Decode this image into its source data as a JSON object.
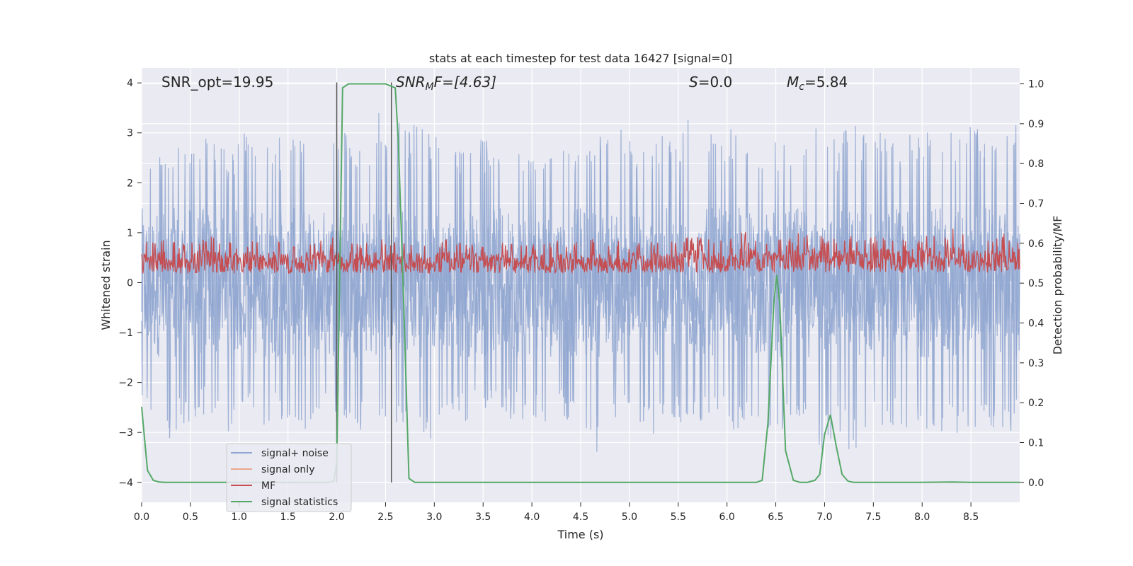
{
  "chart_data": {
    "type": "line",
    "title": "stats at each timestep for test data 16427 [signal=0]",
    "xlabel": "Time (s)",
    "ylabel": "Whitened strain",
    "y2label": "Detection probability/MF",
    "xlim": [
      0.0,
      9.0
    ],
    "ylim": [
      -4.4,
      4.3
    ],
    "y2lim": [
      -0.05,
      1.04
    ],
    "xticks": [
      "0.0",
      "0.5",
      "1.0",
      "1.5",
      "2.0",
      "2.5",
      "3.0",
      "3.5",
      "4.0",
      "4.5",
      "5.0",
      "5.5",
      "6.0",
      "6.5",
      "7.0",
      "7.5",
      "8.0",
      "8.5"
    ],
    "yticks": [
      "4",
      "3",
      "2",
      "1",
      "0",
      "−1",
      "−2",
      "−3",
      "−4"
    ],
    "y2ticks": [
      "1.0",
      "0.9",
      "0.8",
      "0.7",
      "0.6",
      "0.5",
      "0.4",
      "0.3",
      "0.2",
      "0.1",
      "0.0"
    ],
    "grid": true,
    "legend_position": "lower-left",
    "annotations": {
      "snr_opt": "SNR_opt=19.95",
      "snr_mf_base": "SNR",
      "snr_mf_sub": "M",
      "snr_mf_rest": "F=[4.63]",
      "s_var": "S",
      "s_val": "=0.0",
      "mc_var": "M",
      "mc_sub": "c",
      "mc_val": "=5.84"
    },
    "vlines": [
      2.0,
      2.56
    ],
    "series": [
      {
        "name": "signal+ noise",
        "color": "#8fa6d0",
        "axis": "left",
        "envelope_upper": [
          2.2,
          2.6,
          2.5,
          2.8,
          2.6,
          3.0,
          2.7,
          2.6,
          3.3,
          3.2,
          2.9,
          3.0,
          3.1,
          2.8,
          3.0,
          3.2,
          2.9,
          2.7,
          3.6,
          3.4,
          3.3,
          3.3,
          3.0,
          2.9,
          2.8,
          2.9,
          3.0,
          2.6,
          3.0,
          2.7,
          2.8,
          3.0,
          2.7,
          2.7,
          2.7,
          3.0,
          2.9,
          3.2,
          2.8,
          2.8,
          3.0,
          2.8,
          3.9,
          3.6,
          3.0,
          3.1,
          2.7,
          2.7,
          3.0,
          2.9,
          3.2,
          3.0,
          3.4,
          2.9,
          3.2,
          3.1,
          3.2,
          3.1,
          3.0,
          3.0,
          3.2,
          3.1,
          3.0,
          3.2,
          3.1,
          3.3,
          3.2,
          3.2
        ],
        "envelope_lower": [
          -2.4,
          -2.7,
          -3.2,
          -2.9,
          -2.8,
          -2.6,
          -2.8,
          -3.1,
          -2.6,
          -2.9,
          -3.0,
          -2.7,
          -3.2,
          -2.8,
          -2.6,
          -2.7,
          -3.2,
          -2.9,
          -2.8,
          -2.7,
          -3.4,
          -2.9,
          -3.7,
          -3.0,
          -2.7,
          -2.8,
          -2.9,
          -2.6,
          -2.8,
          -2.9,
          -3.0,
          -2.8,
          -2.7,
          -2.9,
          -3.0,
          -4.0,
          -2.8,
          -2.6,
          -2.8,
          -3.2,
          -2.7,
          -2.8,
          -2.9,
          -2.8,
          -2.7,
          -3.2,
          -2.8,
          -3.0,
          -2.9,
          -3.0,
          -2.8,
          -2.9,
          -3.4,
          -3.1,
          -3.6,
          -3.1,
          -3.0,
          -2.8,
          -3.2,
          -2.9,
          -3.1,
          -3.2,
          -3.0,
          -3.1,
          -2.8,
          -3.1,
          -2.9,
          -3.2
        ]
      },
      {
        "name": "signal only",
        "color": "#e8a78d",
        "axis": "left",
        "values": []
      },
      {
        "name": "MF",
        "color": "#c44e52",
        "axis": "right",
        "envelope_upper": [
          0.6,
          0.61,
          0.61,
          0.6,
          0.61,
          0.62,
          0.61,
          0.6,
          0.61,
          0.62,
          0.61,
          0.61,
          0.6,
          0.61,
          0.62,
          0.61,
          0.62,
          0.6,
          0.61,
          0.61,
          0.6,
          0.61,
          0.6,
          0.61,
          0.61,
          0.6,
          0.61,
          0.61,
          0.6,
          0.61,
          0.6,
          0.61,
          0.61,
          0.6,
          0.62,
          0.6,
          0.61,
          0.6,
          0.61,
          0.61,
          0.6,
          0.61,
          0.62,
          0.61,
          0.61,
          0.62,
          0.63,
          0.61,
          0.62,
          0.61,
          0.63,
          0.64,
          0.62,
          0.61,
          0.62,
          0.61,
          0.62,
          0.62,
          0.61,
          0.62,
          0.63,
          0.62,
          0.64,
          0.62,
          0.61,
          0.62,
          0.63,
          0.62
        ],
        "envelope_lower": [
          0.51,
          0.51,
          0.51,
          0.51,
          0.51,
          0.51,
          0.51,
          0.51,
          0.51,
          0.51,
          0.51,
          0.51,
          0.51,
          0.51,
          0.51,
          0.51,
          0.51,
          0.51,
          0.51,
          0.51,
          0.51,
          0.51,
          0.51,
          0.51,
          0.51,
          0.51,
          0.51,
          0.51,
          0.51,
          0.51,
          0.51,
          0.51,
          0.51,
          0.51,
          0.51,
          0.51,
          0.51,
          0.51,
          0.51,
          0.51,
          0.51,
          0.51,
          0.51,
          0.51,
          0.51,
          0.51,
          0.51,
          0.51,
          0.51,
          0.51,
          0.51,
          0.51,
          0.51,
          0.51,
          0.51,
          0.51,
          0.51,
          0.51,
          0.51,
          0.51,
          0.51,
          0.51,
          0.51,
          0.51,
          0.51,
          0.51,
          0.51,
          0.51
        ]
      },
      {
        "name": "signal statistics",
        "color": "#55a868",
        "axis": "right",
        "x": [
          0.0,
          0.03,
          0.06,
          0.12,
          0.18,
          0.24,
          0.5,
          1.0,
          1.5,
          1.9,
          1.97,
          2.0,
          2.06,
          2.12,
          2.25,
          2.5,
          2.6,
          2.63,
          2.68,
          2.74,
          2.8,
          3.0,
          4.0,
          5.0,
          6.0,
          6.3,
          6.36,
          6.42,
          6.48,
          6.51,
          6.54,
          6.6,
          6.68,
          6.75,
          6.82,
          6.9,
          6.95,
          7.0,
          7.06,
          7.12,
          7.18,
          7.24,
          7.3,
          7.5,
          8.0,
          8.3,
          8.5,
          9.0
        ],
        "values": [
          0.19,
          0.11,
          0.03,
          0.005,
          0.001,
          0.0,
          0.0,
          0.0,
          0.0,
          0.0,
          0.003,
          0.05,
          0.99,
          1.0,
          1.0,
          1.0,
          0.99,
          0.86,
          0.5,
          0.01,
          0.0,
          0.0,
          0.0,
          0.0,
          0.0,
          0.0,
          0.005,
          0.15,
          0.45,
          0.52,
          0.45,
          0.08,
          0.005,
          0.0,
          0.0,
          0.005,
          0.02,
          0.12,
          0.17,
          0.09,
          0.02,
          0.003,
          0.0,
          0.0,
          0.0,
          0.001,
          0.0,
          0.0
        ]
      }
    ]
  }
}
